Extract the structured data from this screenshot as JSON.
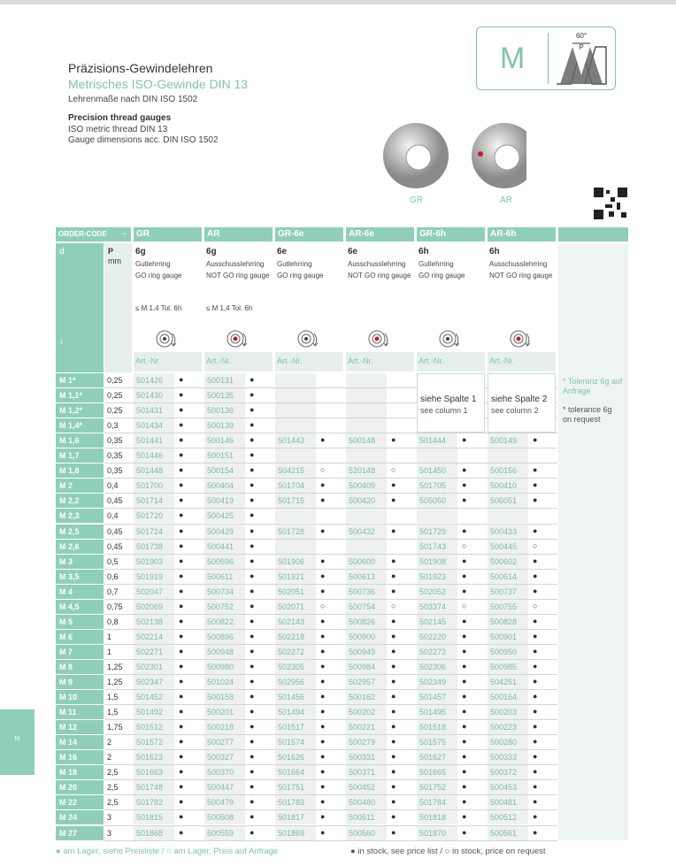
{
  "header": {
    "title": "Präzisions-Gewindelehren",
    "subtitle": "Metrisches ISO-Gewinde DIN 13",
    "line": "Lehrenmaße nach DIN ISO 1502",
    "en_title": "Precision thread gauges",
    "en_lines": [
      "ISO metric thread DIN 13",
      "Gauge dimensions acc. DIN ISO 1502"
    ]
  },
  "badge": {
    "letter": "M",
    "angle": "60°",
    "pitch": "P"
  },
  "products": [
    "GR",
    "AR"
  ],
  "side_tab": "M",
  "table": {
    "order_code": "ORDER-CODE",
    "arrow": "→",
    "d_label": "d",
    "down_arrow": "↓",
    "p_label": "P",
    "p_unit": "mm",
    "columns": [
      {
        "code": "GR",
        "tol": "6g",
        "name_de": "Gutlehrring",
        "name_en": "GO ring gauge",
        "note": "≤ M 1,4 Tol. 6h",
        "art": "Art.-Nr."
      },
      {
        "code": "AR",
        "tol": "6g",
        "name_de": "Ausschusslehrring",
        "name_en": "NOT GO ring gauge",
        "note": "≤ M 1,4 Tol. 6h",
        "art": "Art.-Nr."
      },
      {
        "code": "GR-6e",
        "tol": "6e",
        "name_de": "Gutlehrring",
        "name_en": "GO ring gauge",
        "art": "Art.-Nr."
      },
      {
        "code": "AR-6e",
        "tol": "6e",
        "name_de": "Ausschusslehrring",
        "name_en": "NOT GO ring gauge",
        "art": "Art.-Nr."
      },
      {
        "code": "GR-6h",
        "tol": "6h",
        "name_de": "Gutlehrring",
        "name_en": "GO ring gauge",
        "art": "Art.-Nr."
      },
      {
        "code": "AR-6h",
        "tol": "6h",
        "name_de": "Ausschusslehrring",
        "name_en": "NOT GO ring gauge",
        "art": "Art.-Nr."
      }
    ],
    "merged": [
      {
        "de": "siehe Spalte 1",
        "en": "see column 1"
      },
      {
        "de": "siehe Spalte 2",
        "en": "see column 2"
      }
    ],
    "notes": [
      "* Toleranz 6g auf Anfrage",
      "* tolerance 6g on request"
    ],
    "rows": [
      {
        "d": "M 1*",
        "p": "0,25",
        "items": [
          [
            "501426",
            "●"
          ],
          [
            "500131",
            "●"
          ],
          null,
          null,
          null,
          null
        ]
      },
      {
        "d": "M 1,1*",
        "p": "0,25",
        "items": [
          [
            "501430",
            "●"
          ],
          [
            "500135",
            "●"
          ],
          null,
          null,
          null,
          null
        ]
      },
      {
        "d": "M 1,2*",
        "p": "0,25",
        "items": [
          [
            "501431",
            "●"
          ],
          [
            "500136",
            "●"
          ],
          null,
          null,
          null,
          null
        ]
      },
      {
        "d": "M 1,4*",
        "p": "0,3",
        "items": [
          [
            "501434",
            "●"
          ],
          [
            "500139",
            "●"
          ],
          null,
          null,
          null,
          null
        ]
      },
      {
        "d": "M 1,6",
        "p": "0,35",
        "items": [
          [
            "501441",
            "●"
          ],
          [
            "500146",
            "●"
          ],
          [
            "501443",
            "●"
          ],
          [
            "500148",
            "●"
          ],
          [
            "501444",
            "●"
          ],
          [
            "500149",
            "●"
          ]
        ]
      },
      {
        "d": "M 1,7",
        "p": "0,35",
        "items": [
          [
            "501446",
            "●"
          ],
          [
            "500151",
            "●"
          ],
          null,
          null,
          null,
          null
        ]
      },
      {
        "d": "M 1,8",
        "p": "0,35",
        "items": [
          [
            "501448",
            "●"
          ],
          [
            "500154",
            "●"
          ],
          [
            "504215",
            "○"
          ],
          [
            "520148",
            "○"
          ],
          [
            "501450",
            "●"
          ],
          [
            "500156",
            "●"
          ]
        ]
      },
      {
        "d": "M 2",
        "p": "0,4",
        "items": [
          [
            "501700",
            "●"
          ],
          [
            "500404",
            "●"
          ],
          [
            "501704",
            "●"
          ],
          [
            "500409",
            "●"
          ],
          [
            "501705",
            "●"
          ],
          [
            "500410",
            "●"
          ]
        ]
      },
      {
        "d": "M 2,2",
        "p": "0,45",
        "items": [
          [
            "501714",
            "●"
          ],
          [
            "500419",
            "●"
          ],
          [
            "501715",
            "●"
          ],
          [
            "500420",
            "●"
          ],
          [
            "505050",
            "●"
          ],
          [
            "506051",
            "●"
          ]
        ]
      },
      {
        "d": "M 2,3",
        "p": "0,4",
        "items": [
          [
            "501720",
            "●"
          ],
          [
            "500425",
            "●"
          ],
          null,
          null,
          null,
          null
        ]
      },
      {
        "d": "M 2,5",
        "p": "0,45",
        "items": [
          [
            "501724",
            "●"
          ],
          [
            "500429",
            "●"
          ],
          [
            "501728",
            "●"
          ],
          [
            "500432",
            "●"
          ],
          [
            "501729",
            "●"
          ],
          [
            "500433",
            "●"
          ]
        ]
      },
      {
        "d": "M 2,6",
        "p": "0,45",
        "items": [
          [
            "501738",
            "●"
          ],
          [
            "500441",
            "●"
          ],
          null,
          null,
          [
            "501743",
            "○"
          ],
          [
            "500445",
            "○"
          ]
        ]
      },
      {
        "d": "M 3",
        "p": "0,5",
        "items": [
          [
            "501903",
            "●"
          ],
          [
            "500596",
            "●"
          ],
          [
            "501906",
            "●"
          ],
          [
            "500600",
            "●"
          ],
          [
            "501908",
            "●"
          ],
          [
            "500602",
            "●"
          ]
        ]
      },
      {
        "d": "M 3,5",
        "p": "0,6",
        "items": [
          [
            "501919",
            "●"
          ],
          [
            "500611",
            "●"
          ],
          [
            "501921",
            "●"
          ],
          [
            "500613",
            "●"
          ],
          [
            "501923",
            "●"
          ],
          [
            "500614",
            "●"
          ]
        ]
      },
      {
        "d": "M 4",
        "p": "0,7",
        "items": [
          [
            "502047",
            "●"
          ],
          [
            "500734",
            "●"
          ],
          [
            "502051",
            "●"
          ],
          [
            "500736",
            "●"
          ],
          [
            "502052",
            "●"
          ],
          [
            "500737",
            "●"
          ]
        ]
      },
      {
        "d": "M 4,5",
        "p": "0,75",
        "items": [
          [
            "502069",
            "●"
          ],
          [
            "500752",
            "●"
          ],
          [
            "502071",
            "○"
          ],
          [
            "500754",
            "○"
          ],
          [
            "503374",
            "○"
          ],
          [
            "500755",
            "○"
          ]
        ]
      },
      {
        "d": "M 5",
        "p": "0,8",
        "items": [
          [
            "502138",
            "●"
          ],
          [
            "500822",
            "●"
          ],
          [
            "502143",
            "●"
          ],
          [
            "500826",
            "●"
          ],
          [
            "502145",
            "●"
          ],
          [
            "500828",
            "●"
          ]
        ]
      },
      {
        "d": "M 6",
        "p": "1",
        "items": [
          [
            "502214",
            "●"
          ],
          [
            "500896",
            "●"
          ],
          [
            "502218",
            "●"
          ],
          [
            "500900",
            "●"
          ],
          [
            "502220",
            "●"
          ],
          [
            "500901",
            "●"
          ]
        ]
      },
      {
        "d": "M 7",
        "p": "1",
        "items": [
          [
            "502271",
            "●"
          ],
          [
            "500948",
            "●"
          ],
          [
            "502272",
            "●"
          ],
          [
            "500949",
            "●"
          ],
          [
            "502273",
            "●"
          ],
          [
            "500950",
            "●"
          ]
        ]
      },
      {
        "d": "M 8",
        "p": "1,25",
        "items": [
          [
            "502301",
            "●"
          ],
          [
            "500980",
            "●"
          ],
          [
            "502305",
            "●"
          ],
          [
            "500984",
            "●"
          ],
          [
            "502306",
            "●"
          ],
          [
            "500985",
            "●"
          ]
        ]
      },
      {
        "d": "M 9",
        "p": "1,25",
        "items": [
          [
            "502347",
            "●"
          ],
          [
            "501024",
            "●"
          ],
          [
            "502956",
            "●"
          ],
          [
            "502957",
            "●"
          ],
          [
            "502349",
            "●"
          ],
          [
            "504251",
            "●"
          ]
        ]
      },
      {
        "d": "M 10",
        "p": "1,5",
        "items": [
          [
            "501452",
            "●"
          ],
          [
            "500158",
            "●"
          ],
          [
            "501456",
            "●"
          ],
          [
            "500162",
            "●"
          ],
          [
            "501457",
            "●"
          ],
          [
            "500164",
            "●"
          ]
        ]
      },
      {
        "d": "M 11",
        "p": "1,5",
        "items": [
          [
            "501492",
            "●"
          ],
          [
            "500201",
            "●"
          ],
          [
            "501494",
            "●"
          ],
          [
            "500202",
            "●"
          ],
          [
            "501495",
            "●"
          ],
          [
            "500203",
            "●"
          ]
        ]
      },
      {
        "d": "M 12",
        "p": "1,75",
        "items": [
          [
            "501512",
            "●"
          ],
          [
            "500218",
            "●"
          ],
          [
            "501517",
            "●"
          ],
          [
            "500221",
            "●"
          ],
          [
            "501518",
            "●"
          ],
          [
            "500223",
            "●"
          ]
        ]
      },
      {
        "d": "M 14",
        "p": "2",
        "items": [
          [
            "501572",
            "●"
          ],
          [
            "500277",
            "●"
          ],
          [
            "501574",
            "●"
          ],
          [
            "500279",
            "●"
          ],
          [
            "501575",
            "●"
          ],
          [
            "500280",
            "●"
          ]
        ]
      },
      {
        "d": "M 16",
        "p": "2",
        "items": [
          [
            "501623",
            "●"
          ],
          [
            "500327",
            "●"
          ],
          [
            "501626",
            "●"
          ],
          [
            "500331",
            "●"
          ],
          [
            "501627",
            "●"
          ],
          [
            "500333",
            "●"
          ]
        ]
      },
      {
        "d": "M 18",
        "p": "2,5",
        "items": [
          [
            "501663",
            "●"
          ],
          [
            "500370",
            "●"
          ],
          [
            "501664",
            "●"
          ],
          [
            "500371",
            "●"
          ],
          [
            "501665",
            "●"
          ],
          [
            "500372",
            "●"
          ]
        ]
      },
      {
        "d": "M 20",
        "p": "2,5",
        "items": [
          [
            "501748",
            "●"
          ],
          [
            "500447",
            "●"
          ],
          [
            "501751",
            "●"
          ],
          [
            "500452",
            "●"
          ],
          [
            "501752",
            "●"
          ],
          [
            "500453",
            "●"
          ]
        ]
      },
      {
        "d": "M 22",
        "p": "2,5",
        "items": [
          [
            "501782",
            "●"
          ],
          [
            "500479",
            "●"
          ],
          [
            "501783",
            "●"
          ],
          [
            "500480",
            "●"
          ],
          [
            "501784",
            "●"
          ],
          [
            "500481",
            "●"
          ]
        ]
      },
      {
        "d": "M 24",
        "p": "3",
        "items": [
          [
            "501815",
            "●"
          ],
          [
            "500508",
            "●"
          ],
          [
            "501817",
            "●"
          ],
          [
            "500511",
            "●"
          ],
          [
            "501818",
            "●"
          ],
          [
            "500512",
            "●"
          ]
        ]
      },
      {
        "d": "M 27",
        "p": "3",
        "items": [
          [
            "501868",
            "●"
          ],
          [
            "500559",
            "●"
          ],
          [
            "501869",
            "●"
          ],
          [
            "500560",
            "●"
          ],
          [
            "501870",
            "●"
          ],
          [
            "500561",
            "●"
          ]
        ]
      }
    ]
  },
  "footer": {
    "de": "● am Lager, siehe Preisliste / ○ am Lager, Preis auf Anfrage",
    "en": "● in stock, see price list / ○ in stock, price on request"
  }
}
